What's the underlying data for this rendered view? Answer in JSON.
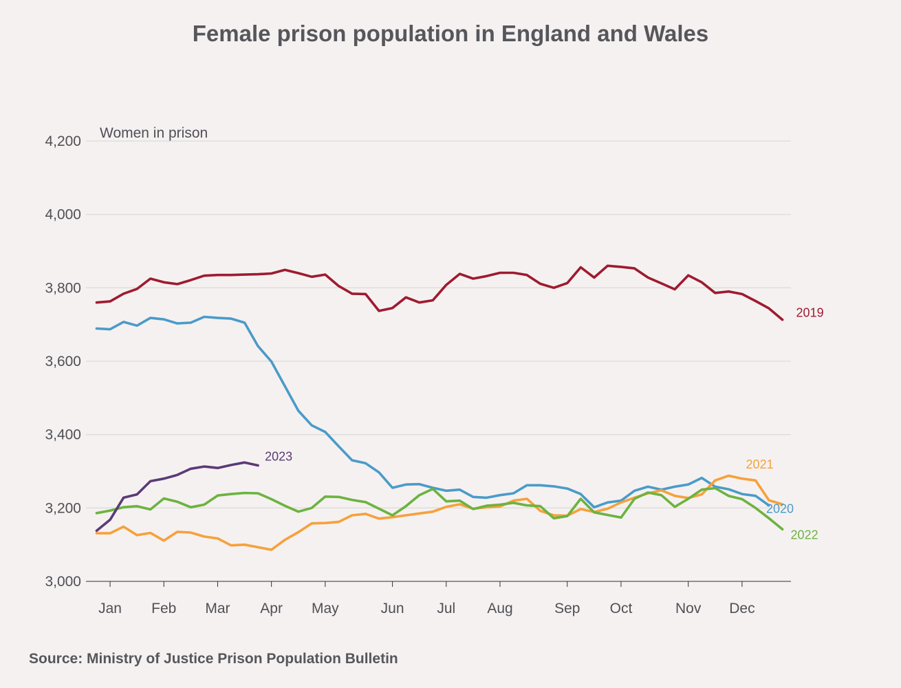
{
  "chart_data": {
    "type": "line",
    "title": "Female prison population in England and Wales",
    "ylabel": "Women in prison",
    "xlabel": "",
    "ylim": [
      3000,
      4200
    ],
    "yticks": [
      3000,
      3200,
      3400,
      3600,
      3800,
      4000,
      4200
    ],
    "ytick_labels": [
      "3,000",
      "3,200",
      "3,400",
      "3,600",
      "3,800",
      "4,000",
      "4,200"
    ],
    "x_unit": "week of year",
    "xlim": [
      0,
      52
    ],
    "xticks": [
      {
        "label": "Jan",
        "week": 1
      },
      {
        "label": "Feb",
        "week": 5
      },
      {
        "label": "Mar",
        "week": 9
      },
      {
        "label": "Apr",
        "week": 13
      },
      {
        "label": "May",
        "week": 17
      },
      {
        "label": "Jun",
        "week": 22
      },
      {
        "label": "Jul",
        "week": 26
      },
      {
        "label": "Aug",
        "week": 30
      },
      {
        "label": "Sep",
        "week": 35
      },
      {
        "label": "Oct",
        "week": 39
      },
      {
        "label": "Nov",
        "week": 44
      },
      {
        "label": "Dec",
        "week": 48
      }
    ],
    "grid": true,
    "legend": "direct labels at line ends",
    "series": [
      {
        "name": "2019",
        "color": "#9e1b2f",
        "x": [
          0,
          1,
          2,
          3,
          4,
          5,
          6,
          7,
          8,
          9,
          10,
          11,
          12,
          13,
          14,
          15,
          16,
          17,
          18,
          19,
          20,
          21,
          22,
          23,
          24,
          25,
          26,
          27,
          28,
          29,
          30,
          31,
          32,
          33,
          34,
          35,
          36,
          37,
          38,
          39,
          40,
          41,
          42,
          43,
          44,
          45,
          46,
          47,
          48,
          49,
          50,
          51
        ],
        "values": [
          3760,
          3763,
          3784,
          3797,
          3825,
          3815,
          3810,
          3821,
          3833,
          3835,
          3835,
          3836,
          3837,
          3839,
          3849,
          3840,
          3830,
          3836,
          3805,
          3784,
          3783,
          3737,
          3745,
          3774,
          3760,
          3766,
          3808,
          3838,
          3825,
          3832,
          3841,
          3841,
          3835,
          3811,
          3800,
          3813,
          3856,
          3828,
          3860,
          3857,
          3853,
          3828,
          3812,
          3796,
          3834,
          3815,
          3786,
          3790,
          3783,
          3764,
          3744,
          3713
        ]
      },
      {
        "name": "2020",
        "color": "#4a9bc9",
        "x": [
          0,
          1,
          2,
          3,
          4,
          5,
          6,
          7,
          8,
          9,
          10,
          11,
          12,
          13,
          14,
          15,
          16,
          17,
          18,
          19,
          20,
          21,
          22,
          23,
          24,
          25,
          26,
          27,
          28,
          29,
          30,
          31,
          32,
          33,
          34,
          35,
          36,
          37,
          38,
          39,
          40,
          41,
          42,
          43,
          44,
          45,
          46,
          47,
          48,
          49,
          50
        ],
        "values": [
          3689,
          3687,
          3707,
          3697,
          3718,
          3714,
          3703,
          3705,
          3721,
          3718,
          3716,
          3705,
          3641,
          3599,
          3532,
          3465,
          3425,
          3407,
          3368,
          3330,
          3322,
          3297,
          3255,
          3264,
          3265,
          3255,
          3247,
          3250,
          3230,
          3228,
          3235,
          3240,
          3262,
          3262,
          3259,
          3253,
          3238,
          3202,
          3215,
          3220,
          3247,
          3258,
          3250,
          3258,
          3264,
          3282,
          3258,
          3251,
          3238,
          3233,
          3207
        ]
      },
      {
        "name": "2021",
        "color": "#f6a13b",
        "x": [
          0,
          1,
          2,
          3,
          4,
          5,
          6,
          7,
          8,
          9,
          10,
          11,
          12,
          13,
          14,
          15,
          16,
          17,
          18,
          19,
          20,
          21,
          22,
          23,
          24,
          25,
          26,
          27,
          28,
          29,
          30,
          31,
          32,
          33,
          34,
          35,
          36,
          37,
          38,
          39,
          40,
          41,
          42,
          43,
          44,
          45,
          46,
          47,
          48,
          49,
          50,
          51
        ],
        "values": [
          3131,
          3131,
          3149,
          3126,
          3132,
          3111,
          3135,
          3133,
          3122,
          3117,
          3098,
          3100,
          3093,
          3086,
          3113,
          3134,
          3158,
          3159,
          3162,
          3180,
          3184,
          3171,
          3175,
          3180,
          3185,
          3190,
          3203,
          3210,
          3198,
          3202,
          3204,
          3220,
          3225,
          3192,
          3180,
          3179,
          3197,
          3189,
          3198,
          3215,
          3228,
          3240,
          3248,
          3233,
          3227,
          3237,
          3275,
          3288,
          3280,
          3275,
          3221,
          3210
        ]
      },
      {
        "name": "2022",
        "color": "#6cb33f",
        "x": [
          0,
          1,
          2,
          3,
          4,
          5,
          6,
          7,
          8,
          9,
          10,
          11,
          12,
          13,
          14,
          15,
          16,
          17,
          18,
          19,
          20,
          21,
          22,
          23,
          24,
          25,
          26,
          27,
          28,
          29,
          30,
          31,
          32,
          33,
          34,
          35,
          36,
          37,
          38,
          39,
          40,
          41,
          42,
          43,
          44,
          45,
          46,
          47,
          48,
          49,
          50,
          51
        ],
        "values": [
          3186,
          3193,
          3202,
          3205,
          3196,
          3226,
          3217,
          3202,
          3209,
          3234,
          3238,
          3241,
          3240,
          3224,
          3206,
          3190,
          3200,
          3231,
          3230,
          3222,
          3216,
          3198,
          3180,
          3205,
          3235,
          3252,
          3218,
          3220,
          3197,
          3206,
          3209,
          3214,
          3207,
          3205,
          3172,
          3178,
          3225,
          3188,
          3181,
          3174,
          3225,
          3242,
          3235,
          3203,
          3225,
          3250,
          3254,
          3233,
          3224,
          3200,
          3172,
          3142
        ]
      },
      {
        "name": "2023",
        "color": "#5b3a76",
        "x": [
          0,
          1,
          2,
          3,
          4,
          5,
          6,
          7,
          8,
          9,
          10,
          11,
          12
        ],
        "values": [
          3138,
          3168,
          3228,
          3237,
          3273,
          3280,
          3290,
          3307,
          3313,
          3309,
          3317,
          3324,
          3316
        ]
      }
    ],
    "source": "Source: Ministry of Justice Prison Population Bulletin"
  }
}
